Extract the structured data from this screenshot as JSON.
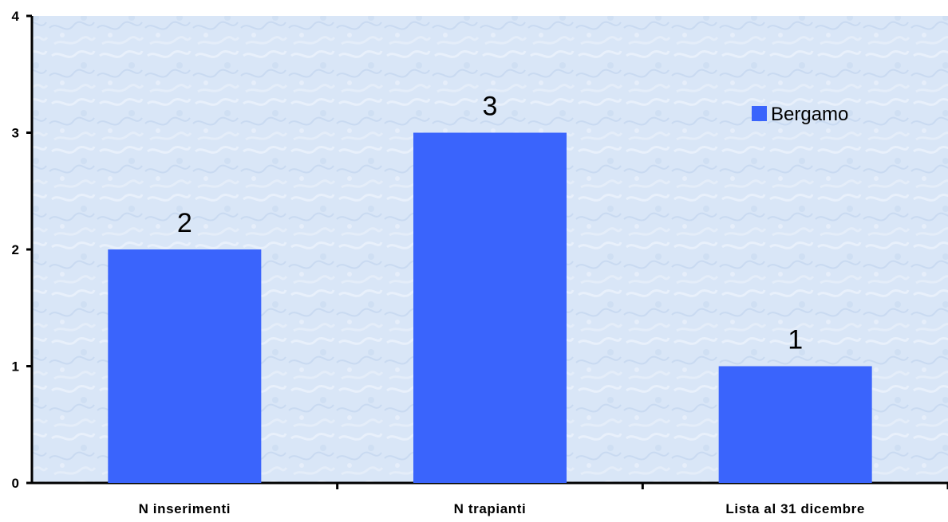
{
  "chart_data": {
    "type": "bar",
    "categories": [
      "N inserimenti",
      "N trapianti",
      "Lista al 31 dicembre"
    ],
    "series": [
      {
        "name": "Bergamo",
        "values": [
          2,
          3,
          1
        ],
        "color": "#3a64fc"
      }
    ],
    "ylim": [
      0,
      4
    ],
    "yticks": [
      0,
      1,
      2,
      3,
      4
    ],
    "data_labels": [
      "2",
      "3",
      "1"
    ],
    "legend_position": "top-right",
    "plot_background": "#dce8f8",
    "grid": false
  }
}
